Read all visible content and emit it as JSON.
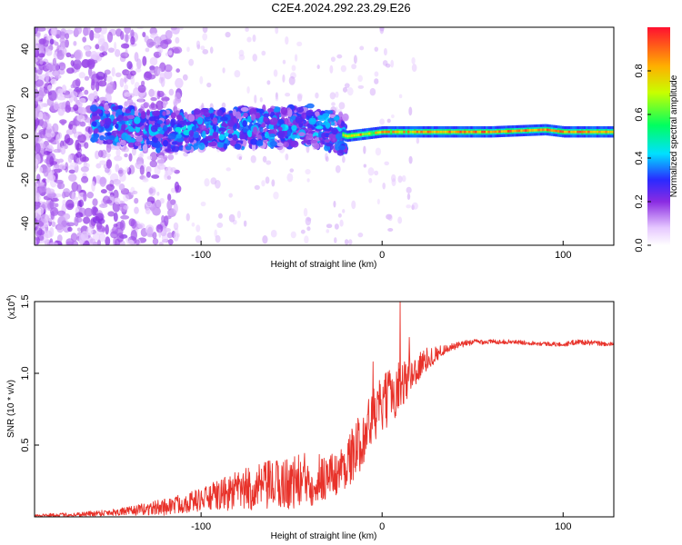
{
  "title": "C2E4.2024.292.23.29.E26",
  "chart_data": [
    {
      "type": "heatmap",
      "xlabel": "Height of straight line (km)",
      "ylabel": "Frequency (Hz)",
      "xlim": [
        -192,
        128
      ],
      "ylim": [
        -50,
        50
      ],
      "xticks": [
        -100,
        0,
        100
      ],
      "yticks": [
        -40,
        -20,
        0,
        20,
        40
      ],
      "colorbar": {
        "label": "Normalized spectral amplitude",
        "range": [
          0.0,
          1.0
        ],
        "ticks": [
          "0.0",
          "0.2",
          "0.4",
          "0.6",
          "0.8"
        ]
      },
      "ridge_frequency": [
        {
          "x": -155,
          "y": 6
        },
        {
          "x": -140,
          "y": 4
        },
        {
          "x": -120,
          "y": 2
        },
        {
          "x": -100,
          "y": 3
        },
        {
          "x": -80,
          "y": 4
        },
        {
          "x": -60,
          "y": 4
        },
        {
          "x": -40,
          "y": 5
        },
        {
          "x": -30,
          "y": 3
        },
        {
          "x": -20,
          "y": 0
        },
        {
          "x": -10,
          "y": 1
        },
        {
          "x": 0,
          "y": 2
        },
        {
          "x": 20,
          "y": 2
        },
        {
          "x": 60,
          "y": 2
        },
        {
          "x": 90,
          "y": 3
        },
        {
          "x": 100,
          "y": 2
        },
        {
          "x": 128,
          "y": 2
        }
      ]
    },
    {
      "type": "line",
      "xlabel": "Height of straight line (km)",
      "ylabel": "SNR (10 * v/v)",
      "multiplier": "(x10",
      "multiplier_exp": "4",
      "xlim": [
        -192,
        128
      ],
      "ylim": [
        0,
        1.5
      ],
      "xticks": [
        -100,
        0,
        100
      ],
      "yticks": [
        "0.5",
        "1.0",
        "1.5"
      ],
      "series": [
        {
          "color": "#e8322a",
          "envelope": [
            {
              "x": -192,
              "mean": 0.01,
              "amp": 0.01
            },
            {
              "x": -170,
              "mean": 0.015,
              "amp": 0.015
            },
            {
              "x": -140,
              "mean": 0.04,
              "amp": 0.03
            },
            {
              "x": -120,
              "mean": 0.07,
              "amp": 0.06
            },
            {
              "x": -100,
              "mean": 0.12,
              "amp": 0.08
            },
            {
              "x": -80,
              "mean": 0.18,
              "amp": 0.14
            },
            {
              "x": -60,
              "mean": 0.22,
              "amp": 0.18
            },
            {
              "x": -40,
              "mean": 0.26,
              "amp": 0.2
            },
            {
              "x": -25,
              "mean": 0.3,
              "amp": 0.15
            },
            {
              "x": -15,
              "mean": 0.45,
              "amp": 0.2
            },
            {
              "x": -5,
              "mean": 0.7,
              "amp": 0.2
            },
            {
              "x": 5,
              "mean": 0.85,
              "amp": 0.2
            },
            {
              "x": 15,
              "mean": 0.98,
              "amp": 0.15
            },
            {
              "x": 25,
              "mean": 1.1,
              "amp": 0.08
            },
            {
              "x": 35,
              "mean": 1.17,
              "amp": 0.03
            },
            {
              "x": 50,
              "mean": 1.22,
              "amp": 0.02
            },
            {
              "x": 70,
              "mean": 1.22,
              "amp": 0.015
            },
            {
              "x": 100,
              "mean": 1.2,
              "amp": 0.015
            },
            {
              "x": 108,
              "mean": 1.22,
              "amp": 0.02
            },
            {
              "x": 128,
              "mean": 1.2,
              "amp": 0.015
            }
          ],
          "peaks": [
            {
              "x": 10,
              "y": 1.5
            },
            {
              "x": 15,
              "y": 1.25
            },
            {
              "x": -5,
              "y": 1.08
            }
          ]
        }
      ]
    }
  ]
}
